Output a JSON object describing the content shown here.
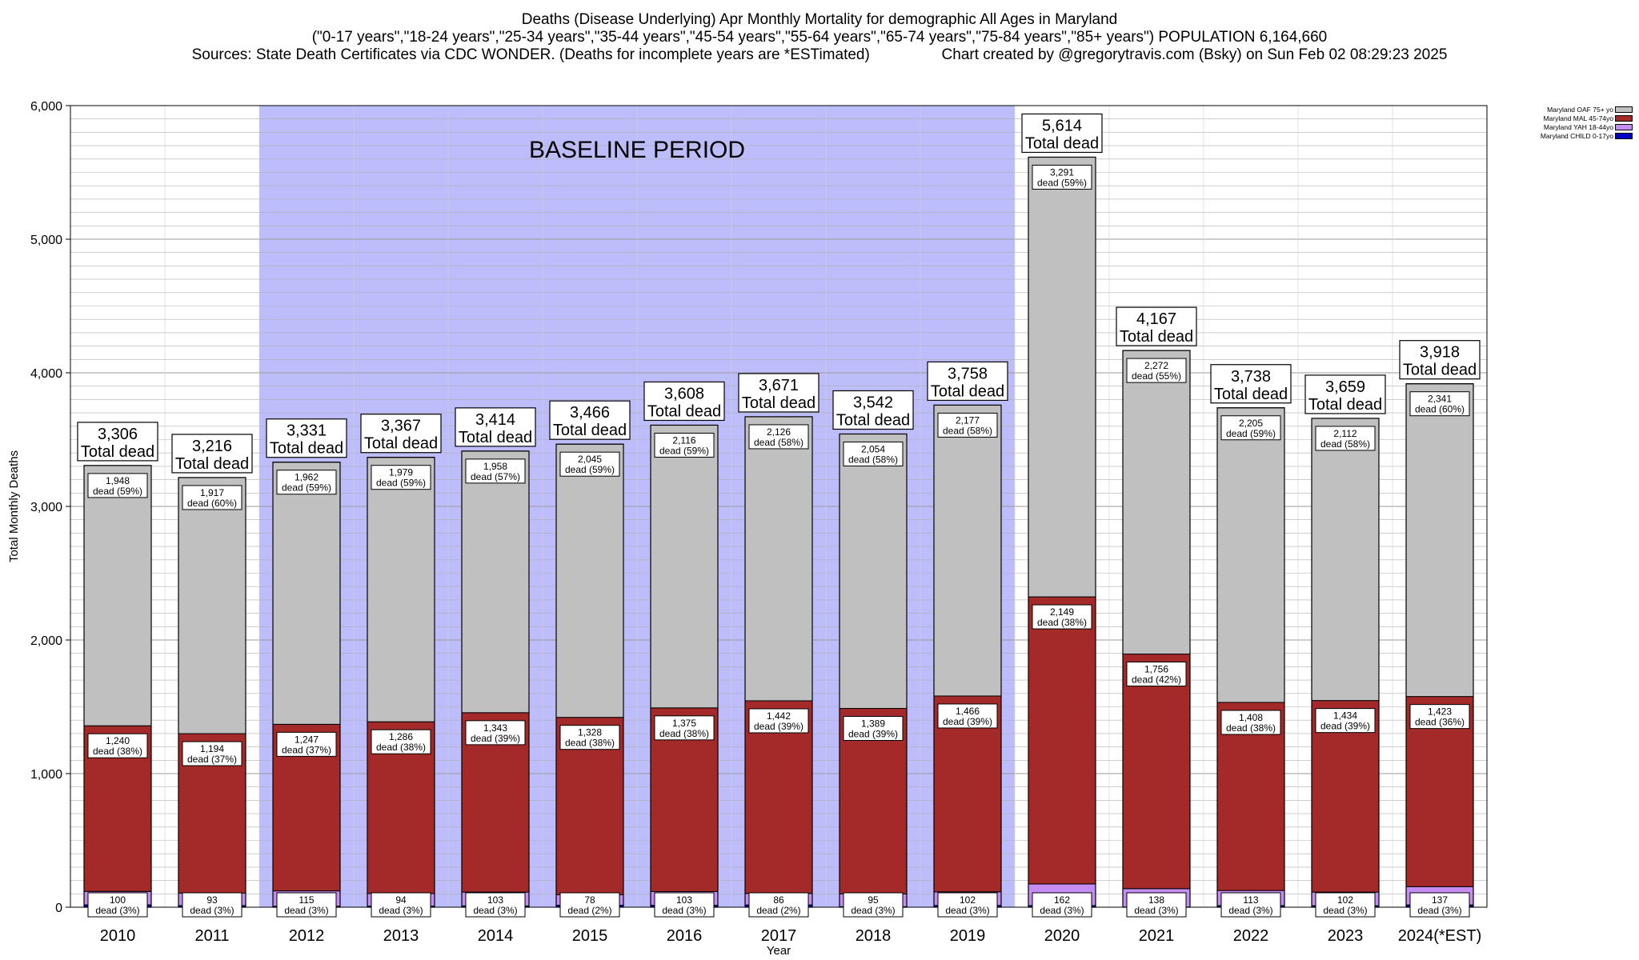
{
  "header": {
    "title_line1": "Deaths (Disease Underlying) Apr Monthly Mortality for demographic All Ages in Maryland",
    "title_line2": "(\"0-17 years\",\"18-24 years\",\"25-34 years\",\"35-44 years\",\"45-54 years\",\"55-64 years\",\"65-74 years\",\"75-84 years\",\"85+ years\") POPULATION 6,164,660",
    "title_line3": "Sources: State Death Certificates via CDC WONDER. (Deaths for incomplete years are *ESTimated)                 Chart created by @gregorytravis.com (Bsky) on Sun Feb 02 08:29:23 2025"
  },
  "colors": {
    "baseline": "#bdbdfb",
    "oaf": "#c0c0c0",
    "mal": "#a42a2a",
    "yah": "#c58cf2",
    "child": "#0000c8",
    "grid": "#b0b0b0"
  },
  "legend": [
    {
      "label": "Maryland OAF 75+ yo",
      "color": "#c0c0c0"
    },
    {
      "label": "Maryland MAL 45-74yo",
      "color": "#a42a2a"
    },
    {
      "label": "Maryland YAH 18-44yo",
      "color": "#c58cf2"
    },
    {
      "label": "Maryland CHILD 0-17yo",
      "color": "#0000c8"
    }
  ],
  "chart_data": {
    "type": "bar",
    "stacked": true,
    "xlabel": "Year",
    "ylabel": "Total Monthly Deaths",
    "ylim": [
      0,
      6000
    ],
    "yticks": [
      0,
      1000,
      2000,
      3000,
      4000,
      5000,
      6000
    ],
    "ytick_labels": [
      "0",
      "1,000",
      "2,000",
      "3,000",
      "4,000",
      "5,000",
      "6,000"
    ],
    "grid": true,
    "legend_position": "top-right",
    "annotation": {
      "text": "BASELINE PERIOD",
      "from": "2012",
      "to": "2019"
    },
    "total_label_suffix": "Total dead",
    "categories": [
      "2010",
      "2011",
      "2012",
      "2013",
      "2014",
      "2015",
      "2016",
      "2017",
      "2018",
      "2019",
      "2020",
      "2021",
      "2022",
      "2023",
      "2024(*EST)"
    ],
    "totals": [
      3306,
      3216,
      3331,
      3367,
      3414,
      3466,
      3608,
      3671,
      3542,
      3758,
      5614,
      4167,
      3738,
      3659,
      3918
    ],
    "total_labels": [
      "3,306",
      "3,216",
      "3,331",
      "3,367",
      "3,414",
      "3,466",
      "3,608",
      "3,671",
      "3,542",
      "3,758",
      "5,614",
      "4,167",
      "3,738",
      "3,659",
      "3,918"
    ],
    "series": [
      {
        "name": "Maryland CHILD 0-17yo",
        "values": [
          18,
          12,
          7,
          8,
          10,
          15,
          14,
          17,
          4,
          13,
          12,
          1,
          12,
          11,
          17
        ],
        "labels": [],
        "pct_labels": []
      },
      {
        "name": "Maryland YAH 18-44yo",
        "values": [
          100,
          93,
          115,
          94,
          103,
          78,
          103,
          86,
          95,
          102,
          162,
          138,
          113,
          102,
          137
        ],
        "labels": [
          "100",
          "93",
          "115",
          "94",
          "103",
          "78",
          "103",
          "86",
          "95",
          "102",
          "162",
          "138",
          "113",
          "102",
          "137"
        ],
        "pct_labels": [
          "dead (3%)",
          "dead (3%)",
          "dead (3%)",
          "dead (3%)",
          "dead (3%)",
          "dead (2%)",
          "dead (3%)",
          "dead (2%)",
          "dead (3%)",
          "dead (3%)",
          "dead (3%)",
          "dead (3%)",
          "dead (3%)",
          "dead (3%)",
          "dead (3%)"
        ]
      },
      {
        "name": "Maryland MAL 45-74yo",
        "values": [
          1240,
          1194,
          1247,
          1286,
          1343,
          1328,
          1375,
          1442,
          1389,
          1466,
          2149,
          1756,
          1408,
          1434,
          1423
        ],
        "labels": [
          "1,240",
          "1,194",
          "1,247",
          "1,286",
          "1,343",
          "1,328",
          "1,375",
          "1,442",
          "1,389",
          "1,466",
          "2,149",
          "1,756",
          "1,408",
          "1,434",
          "1,423"
        ],
        "pct_labels": [
          "dead (38%)",
          "dead (37%)",
          "dead (37%)",
          "dead (38%)",
          "dead (39%)",
          "dead (38%)",
          "dead (38%)",
          "dead (39%)",
          "dead (39%)",
          "dead (39%)",
          "dead (38%)",
          "dead (42%)",
          "dead (38%)",
          "dead (39%)",
          "dead (36%)"
        ]
      },
      {
        "name": "Maryland OAF 75+ yo",
        "values": [
          1948,
          1917,
          1962,
          1979,
          1958,
          2045,
          2116,
          2126,
          2054,
          2177,
          3291,
          2272,
          2205,
          2112,
          2341
        ],
        "labels": [
          "1,948",
          "1,917",
          "1,962",
          "1,979",
          "1,958",
          "2,045",
          "2,116",
          "2,126",
          "2,054",
          "2,177",
          "3,291",
          "2,272",
          "2,205",
          "2,112",
          "2,341"
        ],
        "pct_labels": [
          "dead (59%)",
          "dead (60%)",
          "dead (59%)",
          "dead (59%)",
          "dead (57%)",
          "dead (59%)",
          "dead (59%)",
          "dead (58%)",
          "dead (58%)",
          "dead (58%)",
          "dead (59%)",
          "dead (55%)",
          "dead (59%)",
          "dead (58%)",
          "dead (60%)"
        ]
      }
    ]
  }
}
